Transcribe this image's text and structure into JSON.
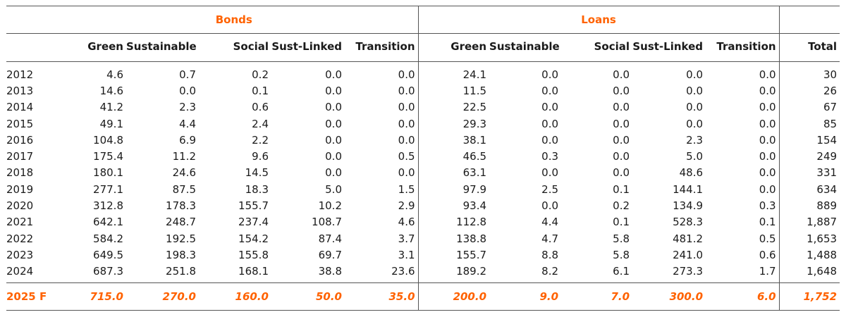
{
  "groups": {
    "bonds": "Bonds",
    "loans": "Loans"
  },
  "columns": [
    "",
    "Green",
    "Sustainable",
    "Social",
    "Sust-Linked",
    "Transition",
    "Green",
    "Sustainable",
    "Social",
    "Sust-Linked",
    "Transition",
    "Total"
  ],
  "rows": [
    [
      "2012",
      "4.6",
      "0.7",
      "0.2",
      "0.0",
      "0.0",
      "24.1",
      "0.0",
      "0.0",
      "0.0",
      "0.0",
      "30"
    ],
    [
      "2013",
      "14.6",
      "0.0",
      "0.1",
      "0.0",
      "0.0",
      "11.5",
      "0.0",
      "0.0",
      "0.0",
      "0.0",
      "26"
    ],
    [
      "2014",
      "41.2",
      "2.3",
      "0.6",
      "0.0",
      "0.0",
      "22.5",
      "0.0",
      "0.0",
      "0.0",
      "0.0",
      "67"
    ],
    [
      "2015",
      "49.1",
      "4.4",
      "2.4",
      "0.0",
      "0.0",
      "29.3",
      "0.0",
      "0.0",
      "0.0",
      "0.0",
      "85"
    ],
    [
      "2016",
      "104.8",
      "6.9",
      "2.2",
      "0.0",
      "0.0",
      "38.1",
      "0.0",
      "0.0",
      "2.3",
      "0.0",
      "154"
    ],
    [
      "2017",
      "175.4",
      "11.2",
      "9.6",
      "0.0",
      "0.5",
      "46.5",
      "0.3",
      "0.0",
      "5.0",
      "0.0",
      "249"
    ],
    [
      "2018",
      "180.1",
      "24.6",
      "14.5",
      "0.0",
      "0.0",
      "63.1",
      "0.0",
      "0.0",
      "48.6",
      "0.0",
      "331"
    ],
    [
      "2019",
      "277.1",
      "87.5",
      "18.3",
      "5.0",
      "1.5",
      "97.9",
      "2.5",
      "0.1",
      "144.1",
      "0.0",
      "634"
    ],
    [
      "2020",
      "312.8",
      "178.3",
      "155.7",
      "10.2",
      "2.9",
      "93.4",
      "0.0",
      "0.2",
      "134.9",
      "0.3",
      "889"
    ],
    [
      "2021",
      "642.1",
      "248.7",
      "237.4",
      "108.7",
      "4.6",
      "112.8",
      "4.4",
      "0.1",
      "528.3",
      "0.1",
      "1,887"
    ],
    [
      "2022",
      "584.2",
      "192.5",
      "154.2",
      "87.4",
      "3.7",
      "138.8",
      "4.7",
      "5.8",
      "481.2",
      "0.5",
      "1,653"
    ],
    [
      "2023",
      "649.5",
      "198.3",
      "155.8",
      "69.7",
      "3.1",
      "155.7",
      "8.8",
      "5.8",
      "241.0",
      "0.6",
      "1,488"
    ],
    [
      "2024",
      "687.3",
      "251.8",
      "168.1",
      "38.8",
      "23.6",
      "189.2",
      "8.2",
      "6.1",
      "273.3",
      "1.7",
      "1,648"
    ]
  ],
  "forecast": [
    "2025 F",
    "715.0",
    "270.0",
    "160.0",
    "50.0",
    "35.0",
    "200.0",
    "9.0",
    "7.0",
    "300.0",
    "6.0",
    "1,752"
  ],
  "colors": {
    "accent": "#ff6200",
    "text": "#1a1a1a",
    "rule": "#555555"
  }
}
